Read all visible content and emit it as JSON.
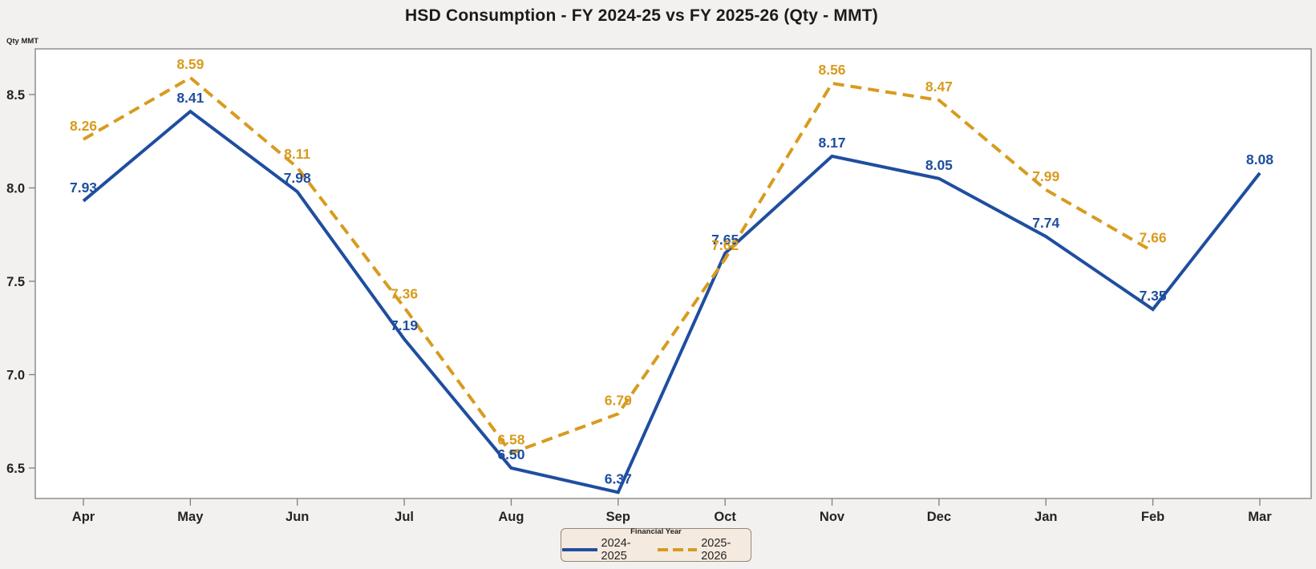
{
  "title": "HSD Consumption - FY 2024-25 vs FY 2025-26 (Qty - MMT)",
  "y_axis_label": "Qty MMT",
  "legend": {
    "title": "Financial Year",
    "entries": [
      {
        "label": "2024-2025"
      },
      {
        "label": "2025-2026"
      }
    ]
  },
  "colors": {
    "series_2024_2025": "#1f4e9f",
    "series_2025_2026": "#d89b1e",
    "page_background": "#f2f1ef",
    "plot_background": "#ffffff",
    "plot_border": "#7f7f7f",
    "text": "#252423",
    "legend_background": "#f4eadf"
  },
  "chart_data": {
    "type": "line",
    "title": "HSD Consumption - FY 2024-25 vs FY 2025-26 (Qty - MMT)",
    "xlabel": "",
    "ylabel": "Qty MMT",
    "categories": [
      "Apr",
      "May",
      "Jun",
      "Jul",
      "Aug",
      "Sep",
      "Oct",
      "Nov",
      "Dec",
      "Jan",
      "Feb",
      "Mar"
    ],
    "series": [
      {
        "name": "2024-2025",
        "color": "#1f4e9f",
        "style": "solid",
        "values": [
          7.93,
          8.41,
          7.98,
          7.19,
          6.5,
          6.37,
          7.65,
          8.17,
          8.05,
          7.74,
          7.35,
          8.08
        ]
      },
      {
        "name": "2025-2026",
        "color": "#d89b1e",
        "style": "dashed",
        "values": [
          8.26,
          8.59,
          8.11,
          7.36,
          6.58,
          6.79,
          7.62,
          8.56,
          8.47,
          7.99,
          7.66,
          null
        ]
      }
    ],
    "y_ticks": [
      6.5,
      7.0,
      7.5,
      8.0,
      8.5
    ],
    "ylim": [
      6.33,
      8.75
    ],
    "grid": false,
    "legend_position": "bottom",
    "data_labels": true
  }
}
